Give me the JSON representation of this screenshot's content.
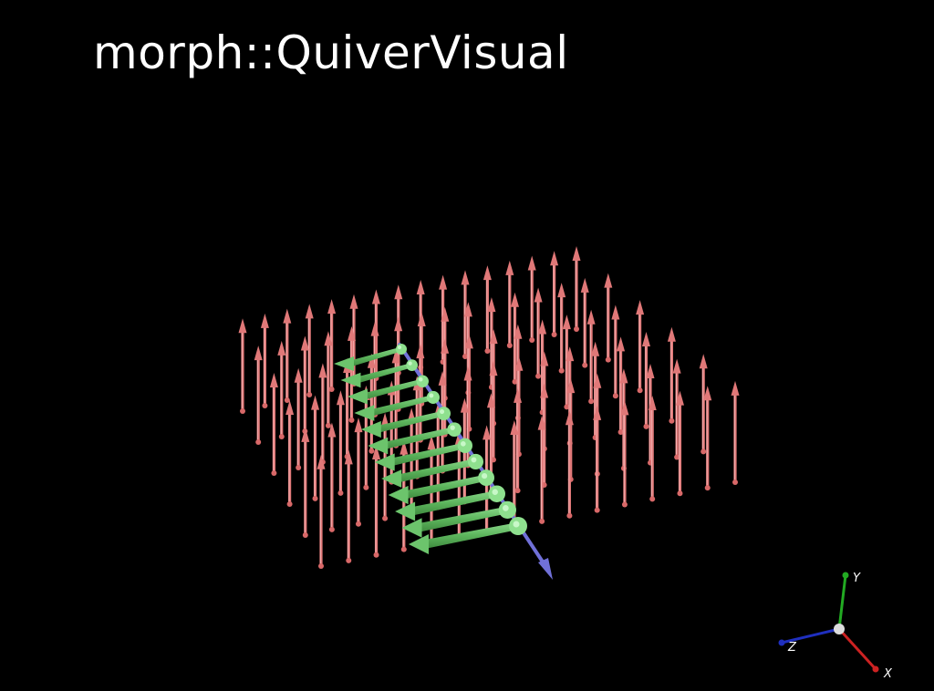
{
  "window": {
    "title": "morph::QuiverVisual",
    "background": "#000000"
  },
  "scene": {
    "quiver_field": {
      "arrow_color": "#e07878",
      "rows": 6,
      "columns": 16,
      "direction": "up"
    },
    "green_arrows": {
      "color": "#6cc46c",
      "count": 12,
      "direction": "-x"
    },
    "blue_line": {
      "color": "#7070d8"
    }
  },
  "axes_gizmo": {
    "x_label": "X",
    "y_label": "Y",
    "z_label": "Z",
    "x_color": "#cc2222",
    "y_color": "#22aa22",
    "z_color": "#1f2fbf",
    "origin_color": "#dddddd"
  }
}
